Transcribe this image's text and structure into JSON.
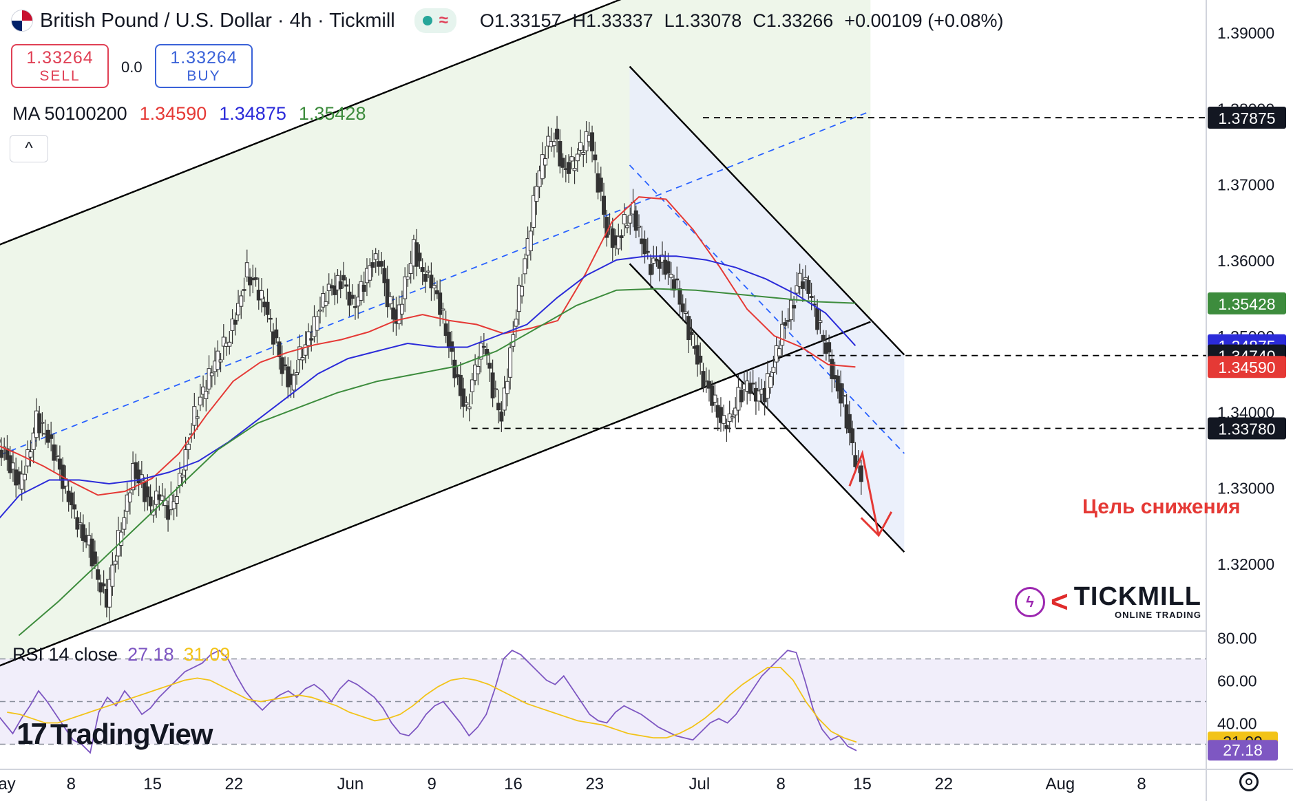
{
  "header": {
    "symbol_title": "British Pound / U.S. Dollar · 4h · Tickmill",
    "ohlc": {
      "open": "O1.33157",
      "high": "H1.33337",
      "low": "L1.33078",
      "close": "C1.33266",
      "change": "+0.00109 (+0.08%)"
    },
    "market_status_icon": "market-open-dot",
    "wave_icon": "≈"
  },
  "trade": {
    "sell_price": "1.33264",
    "sell_label": "SELL",
    "spread": "0.0",
    "buy_price": "1.33264",
    "buy_label": "BUY"
  },
  "ma_legend": {
    "label": "MA 50100200",
    "ma50": "1.34590",
    "ma100": "1.34875",
    "ma200": "1.35428"
  },
  "collapse_icon": "^",
  "rsi_legend": {
    "label": "RSI 14 close",
    "rsi": "27.18",
    "rsi_ma": "31.09"
  },
  "brand": {
    "tradingview": "TradingView",
    "tickmill": "TICKMILL",
    "tickmill_sub": "ONLINE TRADING"
  },
  "annotation": {
    "target_text": "Цель снижения"
  },
  "colors": {
    "ma50": "#e53935",
    "ma100": "#2b2bd9",
    "ma200": "#3d8c3d",
    "rsi": "#7e57c2",
    "rsi_ma": "#f2c318",
    "up_channel_fill": "#eef6ea",
    "down_channel_fill": "#e9eefb"
  },
  "chart_data": {
    "type": "candlestick",
    "title": "British Pound / U.S. Dollar · 4h · Tickmill",
    "y_axis": {
      "min": 1.31,
      "max": 1.4,
      "ticks": [
        "1.39000",
        "1.38000",
        "1.37000",
        "1.36000",
        "1.35000",
        "1.34000",
        "1.33000",
        "1.32000"
      ]
    },
    "x_axis": {
      "labels": [
        "ay",
        "8",
        "15",
        "22",
        "Jun",
        "9",
        "16",
        "23",
        "Jul",
        "8",
        "15",
        "22",
        "Aug",
        "8"
      ]
    },
    "price_labels": [
      {
        "text": "1.37875",
        "value": 1.37875,
        "style": "black"
      },
      {
        "text": "1.35428",
        "value": 1.35428,
        "style": "ma200"
      },
      {
        "text": "1.34875",
        "value": 1.34875,
        "style": "ma100"
      },
      {
        "text": "1.34740",
        "value": 1.3474,
        "style": "black"
      },
      {
        "text": "1.34590",
        "value": 1.3459,
        "style": "ma50"
      },
      {
        "text": "1.33780",
        "value": 1.3378,
        "style": "black"
      }
    ],
    "horizontal_levels": [
      1.37875,
      1.3474,
      1.3378
    ],
    "ascending_channel": {
      "lower_start_date": "May 1",
      "lower_start": 1.306,
      "lower_end_date": "Jul 28",
      "lower_end": 1.3593,
      "upper_offset": 0.0555
    },
    "descending_channel": {
      "start_date": "Jun 25",
      "upper_start": 1.3855,
      "lower_start": 1.3595,
      "end_date": "Jul 30",
      "upper_end": 1.3475,
      "lower_end": 1.3215
    },
    "close_series": [
      1.335,
      1.333,
      1.3305,
      1.334,
      1.339,
      1.337,
      1.3345,
      1.331,
      1.328,
      1.3245,
      1.3225,
      1.3175,
      1.315,
      1.3215,
      1.3265,
      1.3325,
      1.3305,
      1.327,
      1.329,
      1.327,
      1.3295,
      1.3345,
      1.3395,
      1.3425,
      1.3455,
      1.348,
      1.35,
      1.354,
      1.3585,
      1.3565,
      1.354,
      1.35,
      1.346,
      1.3435,
      1.3475,
      1.3495,
      1.3525,
      1.3555,
      1.3565,
      1.3575,
      1.354,
      1.356,
      1.359,
      1.36,
      1.355,
      1.352,
      1.357,
      1.3615,
      1.358,
      1.357,
      1.354,
      1.349,
      1.344,
      1.34,
      1.3455,
      1.349,
      1.343,
      1.3395,
      1.348,
      1.3555,
      1.362,
      1.37,
      1.3745,
      1.3765,
      1.372,
      1.3725,
      1.3745,
      1.3765,
      1.37,
      1.364,
      1.362,
      1.365,
      1.3665,
      1.362,
      1.359,
      1.36,
      1.3585,
      1.3565,
      1.352,
      1.348,
      1.344,
      1.342,
      1.339,
      1.339,
      1.342,
      1.3435,
      1.342,
      1.3425,
      1.3465,
      1.351,
      1.3535,
      1.3575,
      1.356,
      1.352,
      1.3485,
      1.344,
      1.341,
      1.335,
      1.331
    ],
    "moving_averages": [
      {
        "name": "MA 50",
        "color": "#e53935",
        "last": 1.3459,
        "values": [
          1.336,
          1.3345,
          1.3328,
          1.3308,
          1.329,
          1.3295,
          1.3312,
          1.3345,
          1.3395,
          1.344,
          1.3465,
          1.3478,
          1.3488,
          1.3495,
          1.3505,
          1.352,
          1.3528,
          1.352,
          1.3515,
          1.3503,
          1.351,
          1.352,
          1.358,
          1.365,
          1.3683,
          1.368,
          1.364,
          1.359,
          1.3535,
          1.35,
          1.3485,
          1.3462,
          1.3459
        ]
      },
      {
        "name": "MA 100",
        "color": "#2b2bd9",
        "last": 1.34875,
        "values": [
          1.3245,
          1.329,
          1.331,
          1.331,
          1.3305,
          1.331,
          1.332,
          1.3335,
          1.336,
          1.339,
          1.342,
          1.345,
          1.347,
          1.348,
          1.349,
          1.3485,
          1.3485,
          1.35,
          1.3515,
          1.355,
          1.358,
          1.36,
          1.3605,
          1.3605,
          1.36,
          1.359,
          1.3575,
          1.3555,
          1.353,
          1.3487
        ]
      },
      {
        "name": "MA 200",
        "color": "#3d8c3d",
        "last": 1.35428,
        "values": [
          1.3105,
          1.315,
          1.32,
          1.325,
          1.33,
          1.335,
          1.3385,
          1.3405,
          1.3425,
          1.344,
          1.345,
          1.346,
          1.348,
          1.351,
          1.354,
          1.356,
          1.3562,
          1.356,
          1.3555,
          1.355,
          1.3545,
          1.3543
        ]
      }
    ],
    "rsi": {
      "period": 14,
      "last": 27.18,
      "ma_last": 31.09,
      "levels": [
        70,
        50,
        30
      ],
      "ticks": [
        "80.00",
        "60.00",
        "40.00"
      ],
      "values": [
        45,
        40,
        35,
        42,
        48,
        55,
        50,
        44,
        38,
        32,
        30,
        26,
        45,
        52,
        48,
        55,
        50,
        44,
        47,
        52,
        56,
        60,
        64,
        66,
        68,
        72,
        74,
        70,
        62,
        55,
        50,
        46,
        50,
        53,
        55,
        52,
        56,
        58,
        55,
        50,
        56,
        60,
        58,
        55,
        52,
        47,
        40,
        35,
        34,
        38,
        44,
        48,
        50,
        45,
        40,
        34,
        38,
        44,
        56,
        70,
        74,
        72,
        68,
        64,
        60,
        58,
        62,
        56,
        50,
        44,
        41,
        40,
        45,
        48,
        46,
        44,
        41,
        38,
        36,
        34,
        33,
        32,
        36,
        40,
        42,
        40,
        44,
        50,
        56,
        62,
        66,
        70,
        74,
        73,
        60,
        46,
        37,
        32,
        34,
        29,
        27
      ],
      "ma_values": [
        45,
        44,
        42,
        40,
        40,
        42,
        44,
        46,
        48,
        50,
        52,
        54,
        56,
        58,
        60,
        61,
        60,
        57,
        54,
        51,
        50,
        51,
        52,
        53,
        52,
        50,
        48,
        45,
        43,
        41,
        42,
        44,
        48,
        53,
        57,
        60,
        61,
        60,
        58,
        55,
        52,
        49,
        47,
        45,
        43,
        41,
        40,
        39,
        37,
        35,
        34,
        33,
        33,
        35,
        38,
        42,
        47,
        53,
        58,
        62,
        66,
        66,
        60,
        50,
        42,
        36,
        33,
        31
      ]
    }
  }
}
